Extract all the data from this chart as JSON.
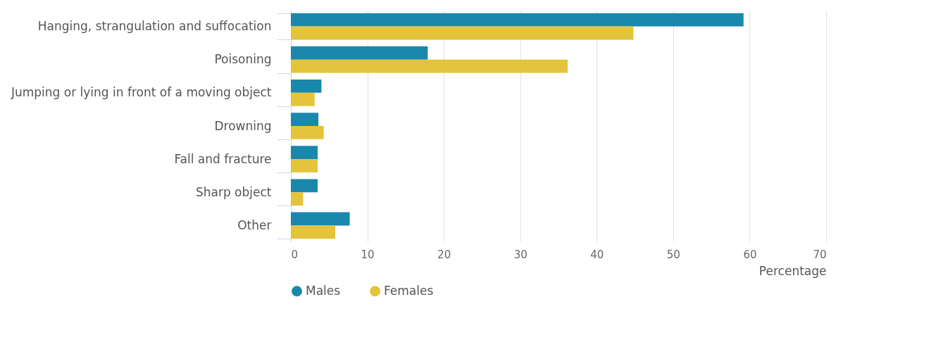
{
  "chart_data": {
    "type": "bar",
    "orientation": "horizontal",
    "xlabel": "Percentage",
    "categories": [
      "Hanging, strangulation and suffocation",
      "Poisoning",
      "Jumping or lying in front of a moving object",
      "Drowning",
      "Fall and fracture",
      "Sharp object",
      "Other"
    ],
    "series": [
      {
        "name": "Males",
        "color": "#1a87ad",
        "values": [
          59.2,
          17.9,
          4.0,
          3.6,
          3.5,
          3.5,
          7.7
        ]
      },
      {
        "name": "Females",
        "color": "#e3c43a",
        "values": [
          44.8,
          36.2,
          3.1,
          4.3,
          3.5,
          1.6,
          5.8
        ]
      }
    ],
    "xlim": [
      0,
      70
    ],
    "xticks": [
      0,
      10,
      20,
      30,
      40,
      50,
      60,
      70
    ],
    "grid": "x",
    "legend": "bottom left"
  }
}
